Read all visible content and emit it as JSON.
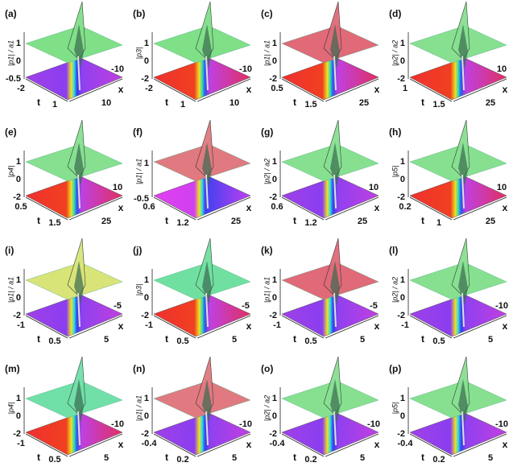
{
  "panels": [
    {
      "label": "(a)",
      "z_label": "|p1| / a1",
      "z_ticks": [
        "1",
        "0",
        "-0.5"
      ],
      "t_ticks": [
        "-2",
        "1"
      ],
      "x_ticks": [
        "-10",
        "10"
      ],
      "t_name": "t",
      "x_name": "x"
    },
    {
      "label": "(b)",
      "z_label": "|p3|",
      "z_ticks": [
        "1",
        "0",
        "-2"
      ],
      "t_ticks": [
        "-2",
        "1"
      ],
      "x_ticks": [
        "-10",
        "10"
      ],
      "t_name": "t",
      "x_name": "x"
    },
    {
      "label": "(c)",
      "z_label": "|p1| / a1",
      "z_ticks": [
        "1",
        "0",
        "-2"
      ],
      "t_ticks": [
        "0.5",
        "1.5"
      ],
      "x_ticks": [
        "25"
      ],
      "t_name": "t",
      "x_name": "x"
    },
    {
      "label": "(d)",
      "z_label": "|p2| / a2",
      "z_ticks": [
        "1",
        "0",
        "-2"
      ],
      "t_ticks": [
        "1",
        "1.5"
      ],
      "x_ticks": [
        "10",
        "25"
      ],
      "t_name": "t",
      "x_name": "x"
    },
    {
      "label": "(e)",
      "z_label": "|p4|",
      "z_ticks": [
        "1",
        "0",
        "-2"
      ],
      "t_ticks": [
        "0.5",
        "1.5"
      ],
      "x_ticks": [
        "10",
        "25"
      ],
      "t_name": "t",
      "x_name": "x"
    },
    {
      "label": "(f)",
      "z_label": "|p1| / a1",
      "z_ticks": [
        "1",
        "-0.5"
      ],
      "t_ticks": [
        "0.6",
        "1.2"
      ],
      "x_ticks": [
        "25"
      ],
      "t_name": "t",
      "x_name": "x"
    },
    {
      "label": "(g)",
      "z_label": "|p2| / a2",
      "z_ticks": [
        "1",
        "0",
        "-2"
      ],
      "t_ticks": [
        "0.6",
        "1.2"
      ],
      "x_ticks": [
        "10",
        "25"
      ],
      "t_name": "t",
      "x_name": "x"
    },
    {
      "label": "(h)",
      "z_label": "|p5|",
      "z_ticks": [
        "1",
        "0",
        "-2"
      ],
      "t_ticks": [
        "0.2",
        "1"
      ],
      "x_ticks": [
        "10",
        "25"
      ],
      "t_name": "t",
      "x_name": "x"
    },
    {
      "label": "(i)",
      "z_label": "|p1| / a1",
      "z_ticks": [
        "1",
        "0",
        "-2"
      ],
      "t_ticks": [
        "-1",
        "0.5"
      ],
      "x_ticks": [
        "-5",
        "5"
      ],
      "t_name": "t",
      "x_name": "x"
    },
    {
      "label": "(j)",
      "z_label": "|p3|",
      "z_ticks": [
        "1",
        "0",
        "-2"
      ],
      "t_ticks": [
        "-1",
        "0.5"
      ],
      "x_ticks": [
        "-5",
        "5"
      ],
      "t_name": "t",
      "x_name": "x"
    },
    {
      "label": "(k)",
      "z_label": "|p1| / a1",
      "z_ticks": [
        "1",
        "0",
        "-2"
      ],
      "t_ticks": [
        "-1",
        "0.5"
      ],
      "x_ticks": [
        "-5",
        "5"
      ],
      "t_name": "t",
      "x_name": "x"
    },
    {
      "label": "(l)",
      "z_label": "|p2| / a2",
      "z_ticks": [
        "1",
        "0",
        "-2"
      ],
      "t_ticks": [
        "-1",
        "0.5"
      ],
      "x_ticks": [
        "-10",
        "5"
      ],
      "t_name": "t",
      "x_name": "x"
    },
    {
      "label": "(m)",
      "z_label": "|p4|",
      "z_ticks": [
        "1",
        "0",
        "-2"
      ],
      "t_ticks": [
        "-1",
        "0.5"
      ],
      "x_ticks": [
        "-10",
        "5"
      ],
      "t_name": "t",
      "x_name": "x"
    },
    {
      "label": "(n)",
      "z_label": "|p1| / a1",
      "z_ticks": [
        "1",
        "0",
        "-2"
      ],
      "t_ticks": [
        "-0.4",
        "0.2"
      ],
      "x_ticks": [
        "-10",
        "5"
      ],
      "t_name": "t",
      "x_name": "x"
    },
    {
      "label": "(o)",
      "z_label": "|p2| / a2",
      "z_ticks": [
        "1",
        "0",
        "-2"
      ],
      "t_ticks": [
        "-0.4",
        "0.2"
      ],
      "x_ticks": [
        "-10",
        "5"
      ],
      "t_name": "t",
      "x_name": "x"
    },
    {
      "label": "(p)",
      "z_label": "|p5|",
      "z_ticks": [
        "1",
        "0",
        "-2"
      ],
      "t_ticks": [
        "-0.4",
        "0.2"
      ],
      "x_ticks": [
        "-10",
        "5"
      ],
      "t_name": "t",
      "x_name": "x"
    }
  ]
}
